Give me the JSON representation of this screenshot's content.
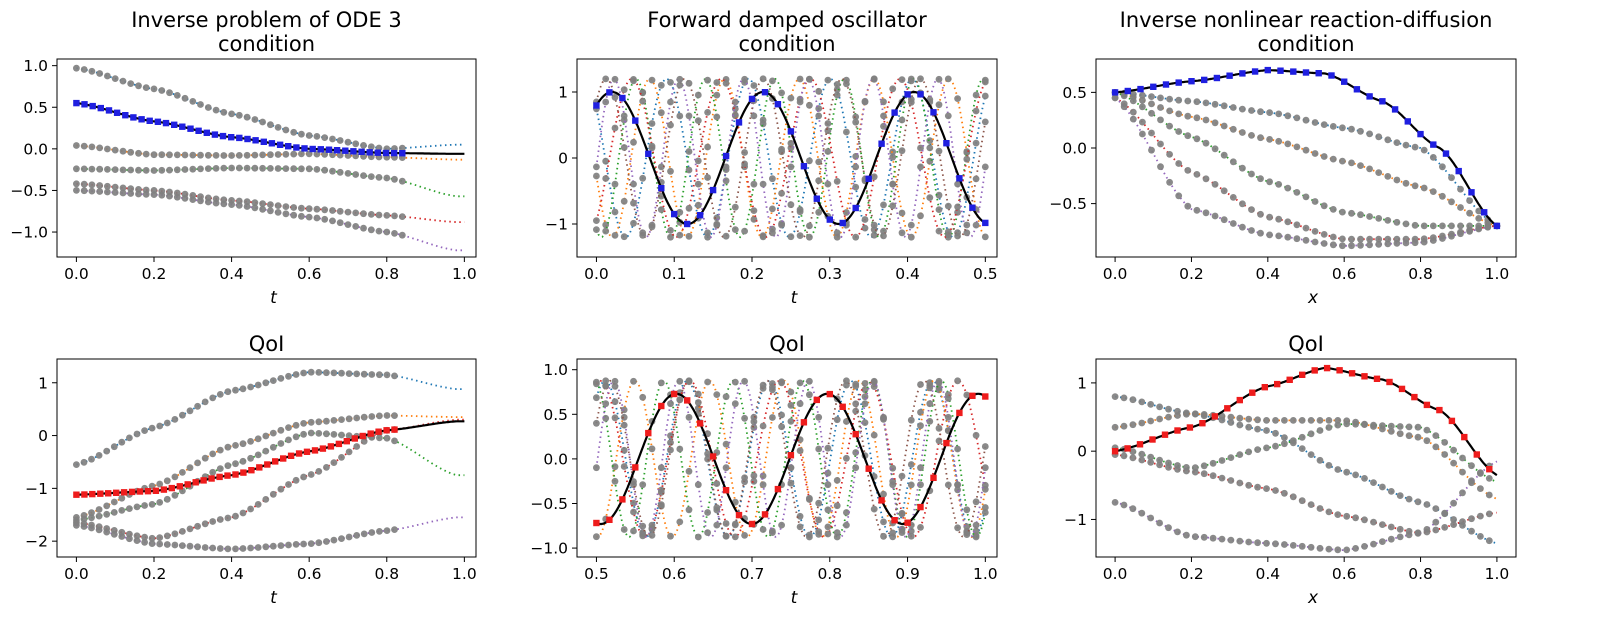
{
  "colors": {
    "grey_points": "#808080",
    "solution_line": "#000000",
    "condition_markers": "#1f1fe0",
    "qoi_markers": "#ee1c1c",
    "dotted_series": [
      "#1f77b4",
      "#ff7f0e",
      "#2ca02c",
      "#d62728",
      "#9467bd",
      "#8c564b"
    ]
  },
  "chart_data": [
    {
      "id": "ode3-condition",
      "type": "line",
      "title": [
        "Inverse problem of ODE 3",
        "condition"
      ],
      "xlabel": "t",
      "xlim": [
        -0.05,
        1.03
      ],
      "ylim": [
        -1.3,
        1.08
      ],
      "xticks": [
        0.0,
        0.2,
        0.4,
        0.6,
        0.8,
        1.0
      ],
      "yticks": [
        -1.0,
        -0.5,
        0.0,
        0.5,
        1.0
      ],
      "xtick_labels": [
        "0.0",
        "0.2",
        "0.4",
        "0.6",
        "0.8",
        "1.0"
      ],
      "ytick_labels": [
        "−1.0",
        "−0.5",
        "0.0",
        "0.5",
        "1.0"
      ],
      "obs_end": 0.84,
      "grey_curves": [
        {
          "x": [
            0,
            0.2,
            0.4,
            0.6,
            0.8,
            0.98
          ],
          "y": [
            0.97,
            0.72,
            0.42,
            0.16,
            0.0,
            0.05
          ]
        },
        {
          "x": [
            0,
            0.2,
            0.4,
            0.6,
            0.8,
            0.98
          ],
          "y": [
            0.04,
            -0.07,
            -0.08,
            -0.06,
            -0.1,
            -0.13
          ]
        },
        {
          "x": [
            0,
            0.2,
            0.4,
            0.6,
            0.8,
            0.98
          ],
          "y": [
            -0.24,
            -0.26,
            -0.23,
            -0.24,
            -0.35,
            -0.57
          ]
        },
        {
          "x": [
            0,
            0.2,
            0.4,
            0.6,
            0.8,
            0.98
          ],
          "y": [
            -0.42,
            -0.5,
            -0.62,
            -0.72,
            -0.8,
            -0.88
          ]
        },
        {
          "x": [
            0,
            0.2,
            0.4,
            0.6,
            0.8,
            0.98
          ],
          "y": [
            -0.5,
            -0.55,
            -0.67,
            -0.82,
            -1.0,
            -1.22
          ]
        }
      ],
      "solution": {
        "x": [
          0,
          0.2,
          0.4,
          0.6,
          0.8,
          0.98
        ],
        "y": [
          0.55,
          0.33,
          0.14,
          0.0,
          -0.05,
          -0.06
        ]
      },
      "marker_kind": "condition",
      "marker_count": 40
    },
    {
      "id": "oscillator-condition",
      "type": "line",
      "title": [
        "Forward damped oscillator",
        "condition"
      ],
      "xlabel": "t",
      "xlim": [
        -0.025,
        0.515
      ],
      "ylim": [
        -1.5,
        1.5
      ],
      "xticks": [
        0.0,
        0.1,
        0.2,
        0.3,
        0.4,
        0.5
      ],
      "yticks": [
        -1,
        0,
        1
      ],
      "xtick_labels": [
        "0.0",
        "0.1",
        "0.2",
        "0.3",
        "0.4",
        "0.5"
      ],
      "ytick_labels": [
        "−1",
        "0",
        "1"
      ],
      "obs_end": 0.5,
      "oscillation": {
        "amp": 1.0,
        "freq": 5.15,
        "phase": -0.65,
        "damping": 0.0
      },
      "grey_phases": [
        0.9,
        1.8,
        2.7,
        3.8,
        4.6,
        5.5
      ],
      "grey_freqs": [
        9.5,
        10.4,
        11.2,
        8.7,
        12.0,
        9.9
      ],
      "marker_kind": "condition",
      "marker_count": 30
    },
    {
      "id": "reaction-diffusion-condition",
      "type": "line",
      "title": [
        "Inverse nonlinear reaction-diffusion",
        "condition"
      ],
      "xlabel": "x",
      "xlim": [
        -0.05,
        1.05
      ],
      "ylim": [
        -0.98,
        0.8
      ],
      "xticks": [
        0.0,
        0.2,
        0.4,
        0.6,
        0.8,
        1.0
      ],
      "yticks": [
        -0.5,
        0.0,
        0.5
      ],
      "xtick_labels": [
        "0.0",
        "0.2",
        "0.4",
        "0.6",
        "0.8",
        "1.0"
      ],
      "ytick_labels": [
        "−0.5",
        "0.0",
        "0.5"
      ],
      "obs_end": 1.0,
      "grey_curves": [
        {
          "x": [
            0,
            0.2,
            0.4,
            0.6,
            0.8,
            1.0
          ],
          "y": [
            0.5,
            0.42,
            0.32,
            0.18,
            0.0,
            -0.7
          ]
        },
        {
          "x": [
            0,
            0.2,
            0.4,
            0.6,
            0.8,
            1.0
          ],
          "y": [
            0.5,
            0.28,
            0.08,
            -0.12,
            -0.35,
            -0.7
          ]
        },
        {
          "x": [
            0,
            0.2,
            0.4,
            0.6,
            0.8,
            1.0
          ],
          "y": [
            0.5,
            0.1,
            -0.3,
            -0.58,
            -0.7,
            -0.7
          ]
        },
        {
          "x": [
            0,
            0.2,
            0.4,
            0.6,
            0.8,
            1.0
          ],
          "y": [
            0.45,
            -0.22,
            -0.62,
            -0.82,
            -0.82,
            -0.7
          ]
        },
        {
          "x": [
            0,
            0.2,
            0.4,
            0.6,
            0.8,
            1.0
          ],
          "y": [
            0.45,
            -0.55,
            -0.78,
            -0.88,
            -0.85,
            -0.7
          ]
        }
      ],
      "solution": {
        "x": [
          0,
          0.2,
          0.4,
          0.55,
          0.7,
          0.85,
          1.0
        ],
        "y": [
          0.5,
          0.6,
          0.7,
          0.67,
          0.42,
          0.0,
          -0.7
        ]
      },
      "marker_kind": "condition",
      "marker_count": 30
    },
    {
      "id": "ode3-qoi",
      "type": "line",
      "title": [
        "QoI"
      ],
      "xlabel": "t",
      "xlim": [
        -0.05,
        1.03
      ],
      "ylim": [
        -2.3,
        1.45
      ],
      "xticks": [
        0.0,
        0.2,
        0.4,
        0.6,
        0.8,
        1.0
      ],
      "yticks": [
        -2,
        -1,
        0,
        1
      ],
      "xtick_labels": [
        "0.0",
        "0.2",
        "0.4",
        "0.6",
        "0.8",
        "1.0"
      ],
      "ytick_labels": [
        "−2",
        "−1",
        "0",
        "1"
      ],
      "obs_end": 0.82,
      "grey_curves": [
        {
          "x": [
            0,
            0.2,
            0.4,
            0.6,
            0.8,
            0.98
          ],
          "y": [
            -0.55,
            0.15,
            0.85,
            1.2,
            1.15,
            0.88
          ]
        },
        {
          "x": [
            0,
            0.2,
            0.4,
            0.6,
            0.8,
            0.98
          ],
          "y": [
            -1.55,
            -0.95,
            -0.2,
            0.25,
            0.38,
            0.35
          ]
        },
        {
          "x": [
            0,
            0.2,
            0.4,
            0.6,
            0.8,
            0.98
          ],
          "y": [
            -1.6,
            -1.3,
            -0.55,
            0.05,
            -0.05,
            -0.75
          ]
        },
        {
          "x": [
            0,
            0.2,
            0.4,
            0.6,
            0.8,
            0.98
          ],
          "y": [
            -1.65,
            -1.95,
            -1.55,
            -0.75,
            0.1,
            0.3
          ]
        },
        {
          "x": [
            0,
            0.2,
            0.4,
            0.6,
            0.8,
            0.98
          ],
          "y": [
            -1.7,
            -2.05,
            -2.15,
            -2.05,
            -1.8,
            -1.55
          ]
        }
      ],
      "solution": {
        "x": [
          0,
          0.2,
          0.4,
          0.6,
          0.8,
          0.98
        ],
        "y": [
          -1.12,
          -1.05,
          -0.75,
          -0.3,
          0.1,
          0.27
        ]
      },
      "marker_kind": "qoi",
      "marker_count": 40
    },
    {
      "id": "oscillator-qoi",
      "type": "line",
      "title": [
        "QoI"
      ],
      "xlabel": "t",
      "xlim": [
        0.475,
        1.015
      ],
      "ylim": [
        -1.1,
        1.12
      ],
      "xticks": [
        0.5,
        0.6,
        0.7,
        0.8,
        0.9,
        1.0
      ],
      "yticks": [
        -1.0,
        -0.5,
        0.0,
        0.5,
        1.0
      ],
      "xtick_labels": [
        "0.5",
        "0.6",
        "0.7",
        "0.8",
        "0.9",
        "1.0"
      ],
      "ytick_labels": [
        "−1.0",
        "−0.5",
        "0.0",
        "0.5",
        "1.0"
      ],
      "obs_end": 1.0,
      "oscillation": {
        "amp": 0.73,
        "freq": 5.15,
        "phase": -0.65,
        "damping": 0.0
      },
      "grey_phases": [
        0.9,
        1.8,
        2.7,
        3.8,
        4.6,
        5.5
      ],
      "grey_freqs": [
        9.5,
        10.4,
        11.2,
        8.7,
        12.0,
        9.9
      ],
      "marker_kind": "qoi",
      "marker_count": 30
    },
    {
      "id": "reaction-diffusion-qoi",
      "type": "line",
      "title": [
        "QoI"
      ],
      "xlabel": "x",
      "xlim": [
        -0.05,
        1.05
      ],
      "ylim": [
        -1.55,
        1.35
      ],
      "xticks": [
        0.0,
        0.2,
        0.4,
        0.6,
        0.8,
        1.0
      ],
      "yticks": [
        -1,
        0,
        1
      ],
      "xtick_labels": [
        "0.0",
        "0.2",
        "0.4",
        "0.6",
        "0.8",
        "1.0"
      ],
      "ytick_labels": [
        "−1",
        "0",
        "1"
      ],
      "obs_end": 0.98,
      "grey_curves": [
        {
          "x": [
            0,
            0.2,
            0.4,
            0.6,
            0.8,
            1.0
          ],
          "y": [
            0.8,
            0.55,
            0.3,
            -0.3,
            -0.75,
            -1.35
          ]
        },
        {
          "x": [
            0,
            0.2,
            0.4,
            0.6,
            0.8,
            1.0
          ],
          "y": [
            0.35,
            0.55,
            0.45,
            0.45,
            0.2,
            -0.7
          ]
        },
        {
          "x": [
            0,
            0.2,
            0.4,
            0.6,
            0.8,
            1.0
          ],
          "y": [
            0.05,
            -0.25,
            0.05,
            0.4,
            0.35,
            -0.45
          ]
        },
        {
          "x": [
            0,
            0.2,
            0.4,
            0.6,
            0.8,
            1.0
          ],
          "y": [
            -0.05,
            -0.3,
            -0.55,
            -0.95,
            -1.2,
            -0.9
          ]
        },
        {
          "x": [
            0,
            0.2,
            0.4,
            0.6,
            0.8,
            1.0
          ],
          "y": [
            -0.75,
            -1.25,
            -1.35,
            -1.45,
            -1.2,
            -0.15
          ]
        }
      ],
      "solution": {
        "x": [
          0,
          0.2,
          0.4,
          0.55,
          0.7,
          0.85,
          1.0
        ],
        "y": [
          0.0,
          0.35,
          0.95,
          1.22,
          1.05,
          0.6,
          -0.35
        ]
      },
      "marker_kind": "qoi",
      "marker_count": 30
    }
  ]
}
